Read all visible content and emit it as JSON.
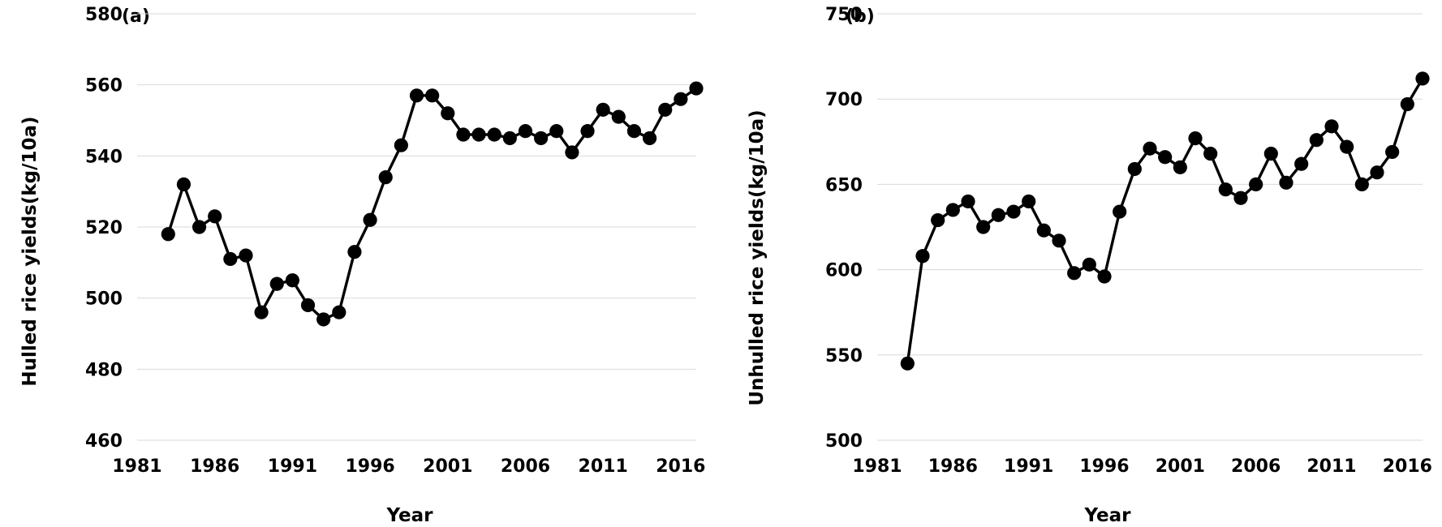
{
  "chart_data": [
    {
      "type": "line",
      "title": "",
      "panel_label": "(a)",
      "xlabel": "Year",
      "ylabel": "Hulled rice yields(kg/10a)",
      "x": [
        1983,
        1984,
        1985,
        1986,
        1987,
        1988,
        1989,
        1990,
        1991,
        1992,
        1993,
        1994,
        1995,
        1996,
        1997,
        1998,
        1999,
        2000,
        2001,
        2002,
        2003,
        2004,
        2005,
        2006,
        2007,
        2008,
        2009,
        2010,
        2011,
        2012,
        2013,
        2014,
        2015,
        2016,
        2017
      ],
      "values": [
        518,
        532,
        520,
        523,
        511,
        512,
        496,
        504,
        505,
        498,
        494,
        496,
        513,
        522,
        534,
        543,
        557,
        557,
        552,
        546,
        546,
        546,
        545,
        547,
        545,
        547,
        541,
        547,
        553,
        551,
        547,
        545,
        553,
        556,
        559
      ],
      "xlim": [
        1981,
        2017
      ],
      "ylim": [
        460,
        580
      ],
      "x_ticks": [
        "1981",
        "1986",
        "1991",
        "1996",
        "2001",
        "2006",
        "2011",
        "2016"
      ],
      "y_ticks": [
        "460",
        "480",
        "500",
        "520",
        "540",
        "560",
        "580"
      ],
      "grid": "horizontal",
      "markers": true,
      "line_color": "#000000",
      "grid_color": "#d9d9d9"
    },
    {
      "type": "line",
      "title": "",
      "panel_label": "(b)",
      "xlabel": "Year",
      "ylabel": "Unhulled rice yields(kg/10a)",
      "x": [
        1983,
        1984,
        1985,
        1986,
        1987,
        1988,
        1989,
        1990,
        1991,
        1992,
        1993,
        1994,
        1995,
        1996,
        1997,
        1998,
        1999,
        2000,
        2001,
        2002,
        2003,
        2004,
        2005,
        2006,
        2007,
        2008,
        2009,
        2010,
        2011,
        2012,
        2013,
        2014,
        2015,
        2016,
        2017
      ],
      "values": [
        545,
        608,
        629,
        635,
        640,
        625,
        632,
        634,
        640,
        623,
        617,
        598,
        603,
        596,
        634,
        659,
        671,
        666,
        660,
        677,
        668,
        647,
        642,
        650,
        668,
        651,
        662,
        676,
        684,
        672,
        650,
        657,
        669,
        697,
        712
      ],
      "xlim": [
        1981,
        2017
      ],
      "ylim": [
        500,
        750
      ],
      "x_ticks": [
        "1981",
        "1986",
        "1991",
        "1996",
        "2001",
        "2006",
        "2011",
        "2016"
      ],
      "y_ticks": [
        "500",
        "550",
        "600",
        "650",
        "700",
        "750"
      ],
      "grid": "horizontal",
      "markers": true,
      "line_color": "#000000",
      "grid_color": "#d9d9d9"
    }
  ]
}
